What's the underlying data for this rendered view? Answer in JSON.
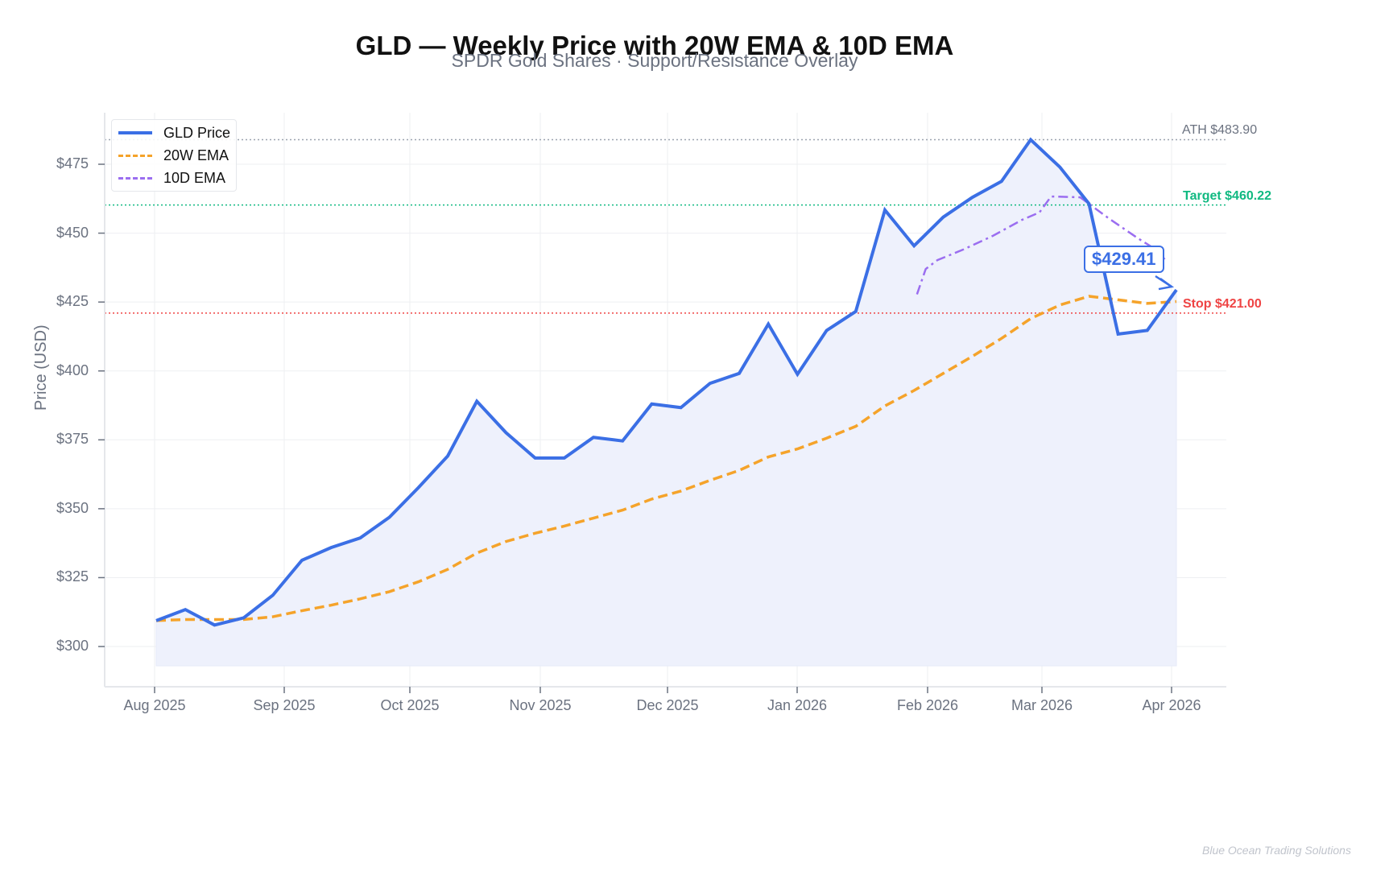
{
  "header": {
    "title": "GLD — Weekly Price with 20W EMA & 10D EMA",
    "subtitle": "SPDR Gold Shares · Support/Resistance Overlay"
  },
  "watermark": "Blue Ocean Trading Solutions",
  "colors": {
    "price": "#3b6fe5",
    "ema20w": "#f5a32a",
    "ema10d": "#9b6ef0",
    "fill": "#eef1fc",
    "ath": "#9ca3af",
    "target": "#10b981",
    "stop": "#ef4444",
    "grid": "#eeeff2",
    "axis_text": "#6b7280"
  },
  "chart_data": {
    "type": "line",
    "title": "GLD — Weekly Price with 20W EMA & 10D EMA",
    "subtitle": "SPDR Gold Shares · Support/Resistance Overlay",
    "xlabel": "",
    "ylabel": "Price (USD)",
    "ylim": [
      285.4,
      493.7
    ],
    "x_tick_labels": [
      "Aug 2025",
      "Sep 2025",
      "Oct 2025",
      "Nov 2025",
      "Dec 2025",
      "Jan 2026",
      "Feb 2026",
      "Mar 2026",
      "Apr 2026"
    ],
    "y_tick_labels": [
      "$300",
      "$325",
      "$350",
      "$375",
      "$400",
      "$425",
      "$450",
      "$475"
    ],
    "y_ticks": [
      300,
      325,
      350,
      375,
      400,
      425,
      450,
      475
    ],
    "grid": true,
    "legend_position": "upper left",
    "x_note": "weekly points, index 0 ≈ 2025-08-01, last ≈ 2026-04-01",
    "series": [
      {
        "name": "GLD Price",
        "style": "solid",
        "start_index": 0,
        "values": [
          309.4,
          313.4,
          307.8,
          310.4,
          318.6,
          331.3,
          335.9,
          339.4,
          346.9,
          357.7,
          369.1,
          389.0,
          377.6,
          368.4,
          368.4,
          375.9,
          374.6,
          388.0,
          386.7,
          395.5,
          399.1,
          417.0,
          398.8,
          414.7,
          421.6,
          458.4,
          445.4,
          455.8,
          463.0,
          468.8,
          483.9,
          474.0,
          460.7,
          413.4,
          414.7,
          429.41
        ]
      },
      {
        "name": "20W EMA",
        "style": "dashed",
        "start_index": 0,
        "values": [
          309.4,
          309.8,
          309.8,
          309.8,
          310.8,
          313.0,
          315.0,
          317.3,
          319.9,
          323.5,
          328.0,
          333.9,
          338.1,
          341.1,
          343.7,
          346.6,
          349.5,
          353.5,
          356.4,
          360.3,
          363.9,
          368.8,
          371.7,
          375.6,
          379.9,
          387.3,
          392.9,
          399.1,
          405.3,
          411.8,
          419.0,
          423.9,
          427.1,
          425.8,
          424.5,
          425.2
        ]
      },
      {
        "name": "10D EMA",
        "style": "dashdot",
        "points_xy_index": [
          [
            26.1,
            427.8
          ],
          [
            26.4,
            437.0
          ],
          [
            26.8,
            440.2
          ],
          [
            27.7,
            444.1
          ],
          [
            28.7,
            449.0
          ],
          [
            29.7,
            454.8
          ],
          [
            30.3,
            457.5
          ],
          [
            30.7,
            463.3
          ],
          [
            31.7,
            463.0
          ],
          [
            32.7,
            455.2
          ],
          [
            33.7,
            448.0
          ],
          [
            34.3,
            444.0
          ],
          [
            34.6,
            440.5
          ]
        ]
      }
    ],
    "fill_under_price": {
      "baseline": 293.0
    },
    "hlines": [
      {
        "name": "ATH",
        "value": 483.9,
        "label": "ATH $483.90",
        "style": "dotted"
      },
      {
        "name": "Target",
        "value": 460.22,
        "label": "Target $460.22",
        "style": "dotted"
      },
      {
        "name": "Stop",
        "value": 421.0,
        "label": "Stop $421.00",
        "style": "dotted"
      }
    ],
    "annotations": [
      {
        "text": "$429.41",
        "points_to_index": 35,
        "value": 429.41
      }
    ]
  },
  "legend": [
    {
      "label": "GLD Price"
    },
    {
      "label": "20W EMA"
    },
    {
      "label": "10D EMA"
    }
  ]
}
